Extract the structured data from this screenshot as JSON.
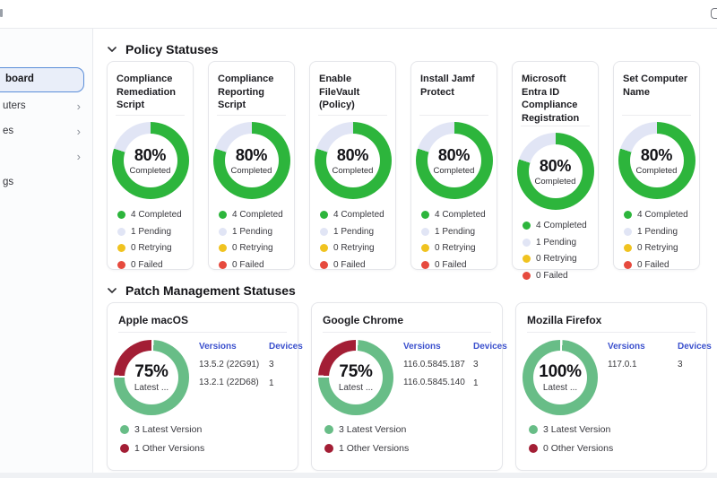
{
  "topbar": {
    "bell_icon": "bell-icon"
  },
  "sidebar": {
    "items": [
      {
        "label": "board",
        "chevron": "",
        "active": true
      },
      {
        "label": "uters",
        "chevron": "›",
        "active": false
      },
      {
        "label": "es",
        "chevron": "›",
        "active": false
      },
      {
        "label": "",
        "chevron": "›",
        "active": false
      },
      {
        "label": "gs",
        "chevron": "",
        "active": false
      }
    ]
  },
  "policy_section": {
    "title": "Policy Statuses",
    "cards": [
      {
        "title": "Compliance Remediation Script",
        "percent": "80%",
        "percent_label": "Completed",
        "donut": {
          "type": "donut",
          "segments": [
            {
              "label": "Completed",
              "value": 80,
              "color": "#2db53c"
            },
            {
              "label": "Pending",
              "value": 20,
              "color": "#e1e5f5"
            }
          ]
        },
        "legend": [
          {
            "label": "4 Completed",
            "color": "#2db53c"
          },
          {
            "label": "1 Pending",
            "color": "#e1e5f5"
          },
          {
            "label": "0 Retrying",
            "color": "#f0c320"
          },
          {
            "label": "0 Failed",
            "color": "#e64a3e"
          }
        ]
      },
      {
        "title": "Compliance Reporting Script",
        "percent": "80%",
        "percent_label": "Completed",
        "donut": {
          "type": "donut",
          "segments": [
            {
              "label": "Completed",
              "value": 80,
              "color": "#2db53c"
            },
            {
              "label": "Pending",
              "value": 20,
              "color": "#e1e5f5"
            }
          ]
        },
        "legend": [
          {
            "label": "4 Completed",
            "color": "#2db53c"
          },
          {
            "label": "1 Pending",
            "color": "#e1e5f5"
          },
          {
            "label": "0 Retrying",
            "color": "#f0c320"
          },
          {
            "label": "0 Failed",
            "color": "#e64a3e"
          }
        ]
      },
      {
        "title": "Enable FileVault (Policy)",
        "percent": "80%",
        "percent_label": "Completed",
        "donut": {
          "type": "donut",
          "segments": [
            {
              "label": "Completed",
              "value": 80,
              "color": "#2db53c"
            },
            {
              "label": "Pending",
              "value": 20,
              "color": "#e1e5f5"
            }
          ]
        },
        "legend": [
          {
            "label": "4 Completed",
            "color": "#2db53c"
          },
          {
            "label": "1 Pending",
            "color": "#e1e5f5"
          },
          {
            "label": "0 Retrying",
            "color": "#f0c320"
          },
          {
            "label": "0 Failed",
            "color": "#e64a3e"
          }
        ]
      },
      {
        "title": "Install Jamf Protect",
        "percent": "80%",
        "percent_label": "Completed",
        "donut": {
          "type": "donut",
          "segments": [
            {
              "label": "Completed",
              "value": 80,
              "color": "#2db53c"
            },
            {
              "label": "Pending",
              "value": 20,
              "color": "#e1e5f5"
            }
          ]
        },
        "legend": [
          {
            "label": "4 Completed",
            "color": "#2db53c"
          },
          {
            "label": "1 Pending",
            "color": "#e1e5f5"
          },
          {
            "label": "0 Retrying",
            "color": "#f0c320"
          },
          {
            "label": "0 Failed",
            "color": "#e64a3e"
          }
        ]
      },
      {
        "title": "Microsoft Entra ID Compliance Registration",
        "percent": "80%",
        "percent_label": "Completed",
        "donut": {
          "type": "donut",
          "segments": [
            {
              "label": "Completed",
              "value": 80,
              "color": "#2db53c"
            },
            {
              "label": "Pending",
              "value": 20,
              "color": "#e1e5f5"
            }
          ]
        },
        "legend": [
          {
            "label": "4 Completed",
            "color": "#2db53c"
          },
          {
            "label": "1 Pending",
            "color": "#e1e5f5"
          },
          {
            "label": "0 Retrying",
            "color": "#f0c320"
          },
          {
            "label": "0 Failed",
            "color": "#e64a3e"
          }
        ]
      },
      {
        "title": "Set Computer Name",
        "percent": "80%",
        "percent_label": "Completed",
        "donut": {
          "type": "donut",
          "segments": [
            {
              "label": "Completed",
              "value": 80,
              "color": "#2db53c"
            },
            {
              "label": "Pending",
              "value": 20,
              "color": "#e1e5f5"
            }
          ]
        },
        "legend": [
          {
            "label": "4 Completed",
            "color": "#2db53c"
          },
          {
            "label": "1 Pending",
            "color": "#e1e5f5"
          },
          {
            "label": "0 Retrying",
            "color": "#f0c320"
          },
          {
            "label": "0 Failed",
            "color": "#e64a3e"
          }
        ]
      }
    ]
  },
  "patch_section": {
    "title": "Patch Management Statuses",
    "cards": [
      {
        "title": "Apple macOS",
        "percent": "75%",
        "percent_label": "Latest ...",
        "donut": {
          "type": "donut",
          "gap": true,
          "segments": [
            {
              "label": "Latest Version",
              "value": 75,
              "color": "#68bd87"
            },
            {
              "label": "Other Versions",
              "value": 25,
              "color": "#a31e35"
            }
          ]
        },
        "table": {
          "headers": [
            "Versions",
            "Devices"
          ],
          "rows": [
            {
              "version": "13.5.2 (22G91)",
              "devices": "3"
            },
            {
              "version": "13.2.1 (22D68)",
              "devices": "1"
            }
          ]
        },
        "legend": [
          {
            "label": "3 Latest Version",
            "color": "#68bd87"
          },
          {
            "label": "1 Other Versions",
            "color": "#a31e35"
          }
        ]
      },
      {
        "title": "Google Chrome",
        "percent": "75%",
        "percent_label": "Latest ...",
        "donut": {
          "type": "donut",
          "gap": true,
          "segments": [
            {
              "label": "Latest Version",
              "value": 75,
              "color": "#68bd87"
            },
            {
              "label": "Other Versions",
              "value": 25,
              "color": "#a31e35"
            }
          ]
        },
        "table": {
          "headers": [
            "Versions",
            "Devices"
          ],
          "rows": [
            {
              "version": "116.0.5845.187",
              "devices": "3"
            },
            {
              "version": "116.0.5845.140",
              "devices": "1"
            }
          ]
        },
        "legend": [
          {
            "label": "3 Latest Version",
            "color": "#68bd87"
          },
          {
            "label": "1 Other Versions",
            "color": "#a31e35"
          }
        ]
      },
      {
        "title": "Mozilla Firefox",
        "percent": "100%",
        "percent_label": "Latest ...",
        "donut": {
          "type": "donut",
          "gap": true,
          "segments": [
            {
              "label": "Latest Version",
              "value": 100,
              "color": "#68bd87"
            },
            {
              "label": "Other Versions",
              "value": 0,
              "color": "#a31e35"
            }
          ]
        },
        "table": {
          "headers": [
            "Versions",
            "Devices"
          ],
          "rows": [
            {
              "version": "117.0.1",
              "devices": "3"
            }
          ]
        },
        "legend": [
          {
            "label": "3 Latest Version",
            "color": "#68bd87"
          },
          {
            "label": "0 Other Versions",
            "color": "#a31e35"
          }
        ]
      }
    ]
  }
}
